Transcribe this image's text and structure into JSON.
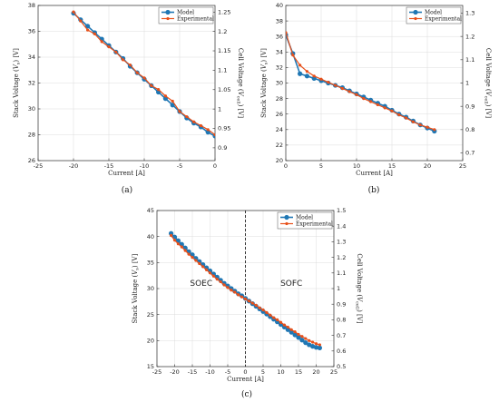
{
  "colors": {
    "model": "#1f77b4",
    "experimental": "#e8501a"
  },
  "chart_data": [
    {
      "type": "line",
      "panel_label": "(a)",
      "xlabel": "Current [A]",
      "ylabel": "Stack Voltage (V_s) [V]",
      "y2label": "Cell Voltage (V_cell) [V]",
      "xlim": [
        -25,
        0
      ],
      "ylim": [
        26,
        38
      ],
      "y2lim": [
        0.867,
        1.267
      ],
      "xticks": [
        -25,
        -20,
        -15,
        -10,
        -5,
        0
      ],
      "yticks": [
        26,
        28,
        30,
        32,
        34,
        36,
        38
      ],
      "y2ticks": [
        0.9,
        0.95,
        1,
        1.05,
        1.1,
        1.15,
        1.2,
        1.25
      ],
      "grid": true,
      "legend_position": "top-right",
      "series": [
        {
          "name": "Model",
          "x": [
            -20,
            -19,
            -18,
            -17,
            -16,
            -15,
            -14,
            -13,
            -12,
            -11,
            -10,
            -9,
            -8,
            -7,
            -6,
            -5,
            -4,
            -3,
            -2,
            -1,
            0
          ],
          "values": [
            37.4,
            36.9,
            36.4,
            35.9,
            35.4,
            34.9,
            34.4,
            33.9,
            33.3,
            32.8,
            32.3,
            31.8,
            31.3,
            30.8,
            30.3,
            29.8,
            29.3,
            28.9,
            28.6,
            28.2,
            27.9
          ]
        },
        {
          "name": "Experimental",
          "x": [
            -20,
            -19,
            -18,
            -17,
            -16,
            -15,
            -14,
            -13,
            -12,
            -11,
            -10,
            -9,
            -8,
            -7,
            -6,
            -5,
            -4,
            -3,
            -2,
            -1,
            0
          ],
          "values": [
            37.5,
            36.8,
            36.1,
            35.8,
            35.2,
            34.8,
            34.4,
            33.8,
            33.4,
            32.8,
            32.4,
            31.8,
            31.5,
            31.0,
            30.6,
            29.8,
            29.4,
            29.0,
            28.7,
            28.4,
            28.0
          ]
        }
      ]
    },
    {
      "type": "line",
      "panel_label": "(b)",
      "xlabel": "Current [A]",
      "ylabel": "Stack Voltage (V_s) [V]",
      "y2label": "Cell Voltage (V_cell) [V]",
      "xlim": [
        0,
        25
      ],
      "ylim": [
        20,
        40
      ],
      "y2lim": [
        0.667,
        1.333
      ],
      "xticks": [
        0,
        5,
        10,
        15,
        20,
        25
      ],
      "yticks": [
        20,
        22,
        24,
        26,
        28,
        30,
        32,
        34,
        36,
        38,
        40
      ],
      "y2ticks": [
        0.7,
        0.8,
        0.9,
        1,
        1.1,
        1.2,
        1.3
      ],
      "grid": true,
      "legend_position": "top-right",
      "series": [
        {
          "name": "Model",
          "x": [
            0,
            1,
            2,
            3,
            4,
            5,
            6,
            7,
            8,
            9,
            10,
            11,
            12,
            13,
            14,
            15,
            16,
            17,
            18,
            19,
            20,
            21
          ],
          "values": [
            36.2,
            33.8,
            31.2,
            30.9,
            30.6,
            30.3,
            30.0,
            29.7,
            29.4,
            29.0,
            28.6,
            28.2,
            27.8,
            27.4,
            27.0,
            26.5,
            26.0,
            25.6,
            25.1,
            24.6,
            24.2,
            23.8
          ]
        },
        {
          "name": "Experimental",
          "x": [
            0,
            1,
            2,
            3,
            4,
            5,
            6,
            7,
            8,
            9,
            10,
            11,
            12,
            13,
            14,
            15,
            16,
            17,
            18,
            19,
            20,
            21
          ],
          "values": [
            36.5,
            33.6,
            32.3,
            31.5,
            30.9,
            30.5,
            30.1,
            29.7,
            29.3,
            28.9,
            28.5,
            28.0,
            27.6,
            27.2,
            26.8,
            26.4,
            25.9,
            25.5,
            25.0,
            24.6,
            24.3,
            24.0
          ]
        }
      ]
    },
    {
      "type": "line",
      "panel_label": "(c)",
      "xlabel": "Current [A]",
      "ylabel": "Stack Voltage (V_s) [V]",
      "y2label": "Cell Voltage (V_cell) [V]",
      "xlim": [
        -25,
        25
      ],
      "ylim": [
        15,
        45
      ],
      "y2lim": [
        0.5,
        1.5
      ],
      "xticks": [
        -25,
        -20,
        -15,
        -10,
        -5,
        0,
        5,
        10,
        15,
        20,
        25
      ],
      "yticks": [
        15,
        20,
        25,
        30,
        35,
        40,
        45
      ],
      "y2ticks": [
        0.5,
        0.6,
        0.7,
        0.8,
        0.9,
        1,
        1.1,
        1.2,
        1.3,
        1.4,
        1.5
      ],
      "grid": true,
      "legend_position": "top-right",
      "annotations": [
        "SOEC",
        "SOFC"
      ],
      "vline_x": 0,
      "series": [
        {
          "name": "Model",
          "x": [
            -21,
            -20,
            -19,
            -18,
            -17,
            -16,
            -15,
            -14,
            -13,
            -12,
            -11,
            -10,
            -9,
            -8,
            -7,
            -6,
            -5,
            -4,
            -3,
            -2,
            -1,
            0,
            1,
            2,
            3,
            4,
            5,
            6,
            7,
            8,
            9,
            10,
            11,
            12,
            13,
            14,
            15,
            16,
            17,
            18,
            19,
            20,
            21
          ],
          "values": [
            40.6,
            39.9,
            39.2,
            38.5,
            37.8,
            37.1,
            36.5,
            35.8,
            35.2,
            34.6,
            34.0,
            33.4,
            32.8,
            32.2,
            31.6,
            31.0,
            30.5,
            30.0,
            29.5,
            29.0,
            28.6,
            28.1,
            27.6,
            27.1,
            26.6,
            26.1,
            25.6,
            25.1,
            24.6,
            24.1,
            23.6,
            23.1,
            22.6,
            22.1,
            21.6,
            21.1,
            20.6,
            20.1,
            19.6,
            19.2,
            18.9,
            18.7,
            18.6
          ]
        },
        {
          "name": "Experimental",
          "x": [
            -21,
            -20,
            -19,
            -18,
            -17,
            -16,
            -15,
            -14,
            -13,
            -12,
            -11,
            -10,
            -9,
            -8,
            -7,
            -6,
            -5,
            -4,
            -3,
            -2,
            -1,
            0,
            1,
            2,
            3,
            4,
            5,
            6,
            7,
            8,
            9,
            10,
            11,
            12,
            13,
            14,
            15,
            16,
            17,
            18,
            19,
            20,
            21
          ],
          "values": [
            40.2,
            39.3,
            38.6,
            38.0,
            37.3,
            36.6,
            36.0,
            35.4,
            34.8,
            34.2,
            33.6,
            33.0,
            32.4,
            31.8,
            31.3,
            30.7,
            30.2,
            29.7,
            29.3,
            28.8,
            28.4,
            28.0,
            27.6,
            27.2,
            26.8,
            26.3,
            25.9,
            25.4,
            24.9,
            24.4,
            24.0,
            23.5,
            23.0,
            22.6,
            22.1,
            21.7,
            21.2,
            20.8,
            20.4,
            20.0,
            19.7,
            19.4,
            19.2
          ]
        }
      ]
    }
  ]
}
